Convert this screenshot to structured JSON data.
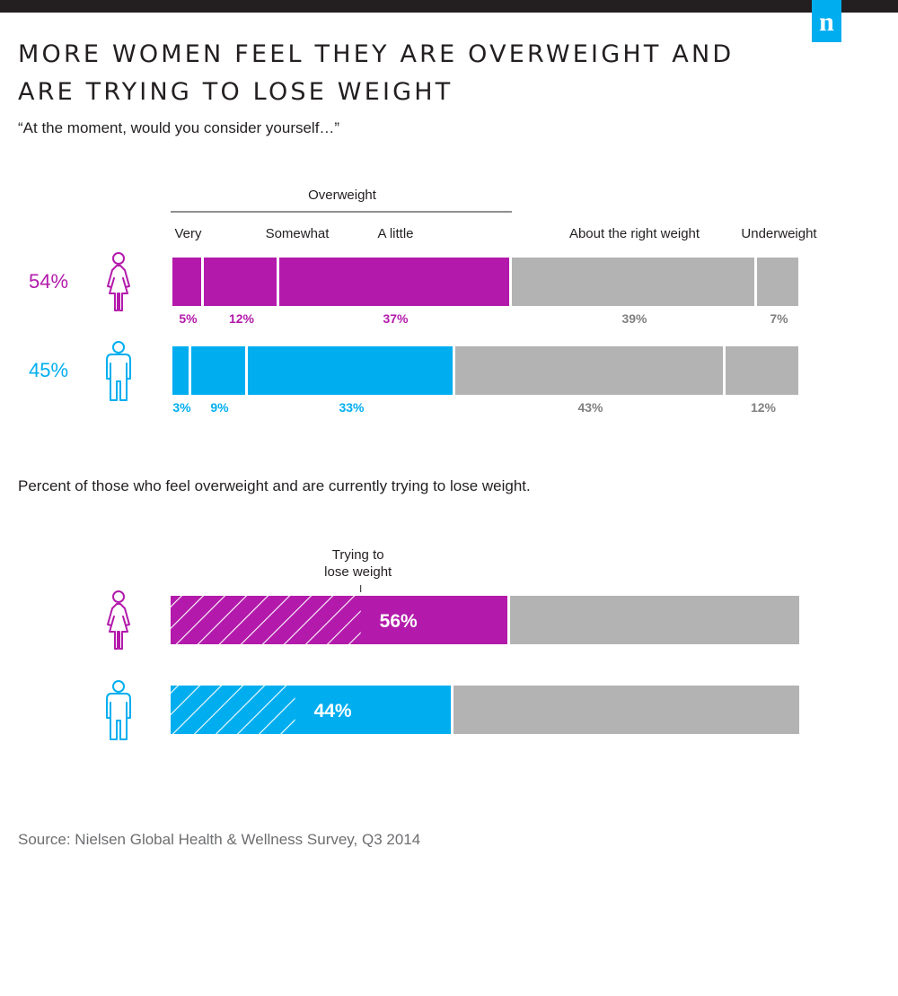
{
  "header": {
    "title": "MORE WOMEN FEEL THEY ARE OVERWEIGHT AND ARE TRYING TO LOSE WEIGHT",
    "question": "“At the moment, would you consider yourself…”",
    "subtitle": "Percent of those who feel overweight and are currently trying to lose weight.",
    "source": "Source: Nielsen Global Health & Wellness Survey, Q3 2014",
    "logo_letter": "n"
  },
  "colors": {
    "women": "#b31aab",
    "men": "#00aeef",
    "neutral": "#b3b3b3",
    "neutral_text": "#808080",
    "text": "#231f20"
  },
  "chart_data": [
    {
      "type": "bar",
      "orientation": "horizontal",
      "stacked": true,
      "group_label": "Overweight",
      "categories": [
        "Very",
        "Somewhat",
        "A little",
        "About the right weight",
        "Underweight"
      ],
      "series": [
        {
          "name": "",
          "icon": "female-icon",
          "total_label": "54%",
          "values": [
            5,
            12,
            37,
            39,
            7
          ],
          "labels": [
            "5%",
            "12%",
            "37%",
            "39%",
            "7%"
          ]
        },
        {
          "name": "",
          "icon": "male-icon",
          "total_label": "45%",
          "values": [
            3,
            9,
            33,
            43,
            12
          ],
          "labels": [
            "3%",
            "9%",
            "33%",
            "43%",
            "12%"
          ]
        }
      ],
      "xlim": [
        0,
        100
      ]
    },
    {
      "type": "bar",
      "orientation": "horizontal",
      "annotation": "Trying to lose weight",
      "series": [
        {
          "name": "",
          "icon": "female-icon",
          "overweight_share": 54,
          "trying_to_lose": 56,
          "label": "56%"
        },
        {
          "name": "",
          "icon": "male-icon",
          "overweight_share": 45,
          "trying_to_lose": 44,
          "label": "44%"
        }
      ],
      "xlim": [
        0,
        100
      ]
    }
  ]
}
